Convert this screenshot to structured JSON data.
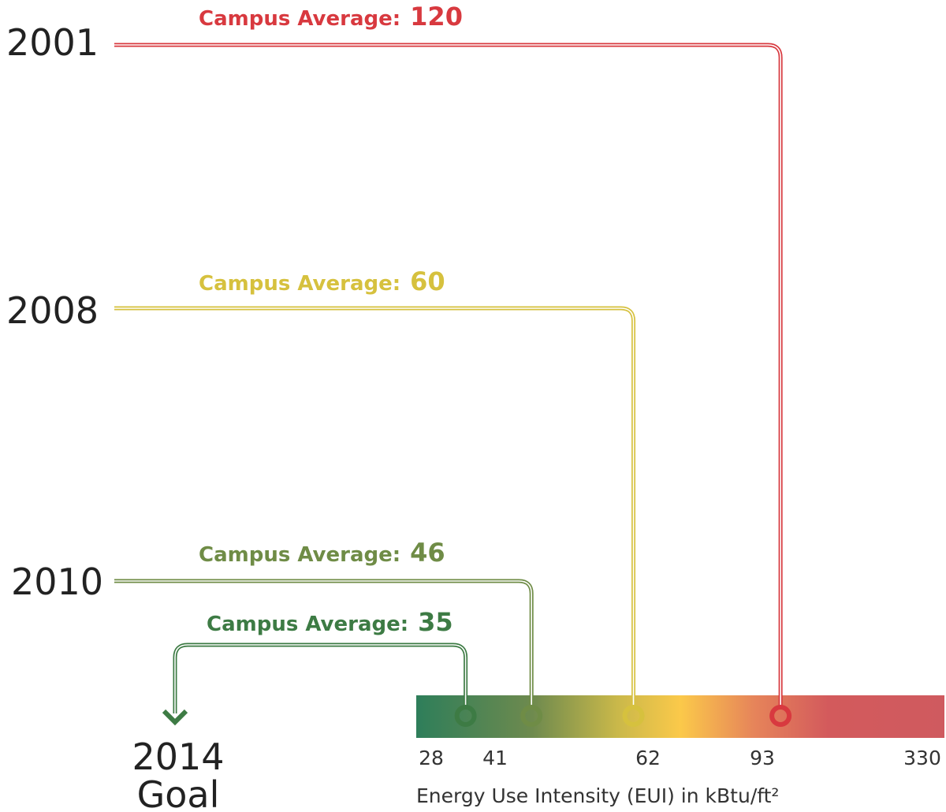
{
  "entries": [
    {
      "year": "2001",
      "label": "Campus Average:",
      "value": 120,
      "color": "#d8393f"
    },
    {
      "year": "2008",
      "label": "Campus Average:",
      "value": 60,
      "color": "#d6c13e"
    },
    {
      "year": "2010",
      "label": "Campus Average:",
      "value": 46,
      "color": "#6f8c46"
    },
    {
      "year": "2014",
      "label": "Campus Average:",
      "value": 35,
      "color": "#3d7b44"
    }
  ],
  "goal_label": "Goal",
  "scale": {
    "ticks": [
      28,
      41,
      62,
      93,
      330
    ],
    "axis_label": "Energy Use Intensity (EUI) in kBtu/ft²"
  }
}
